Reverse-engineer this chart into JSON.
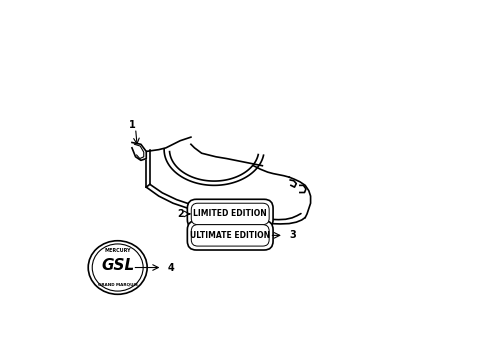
{
  "bg_color": "#ffffff",
  "line_color": "#000000",
  "label_color": "#000000",
  "figsize": [
    4.89,
    3.6
  ],
  "dpi": 100,
  "le_text": "LIMITED EDITION",
  "ue_text": "ULTIMATE EDITION",
  "mercury_text": "MERCURY",
  "grand_marquis_text": "GRAND MARQUIS",
  "gsl_text": "GSL"
}
